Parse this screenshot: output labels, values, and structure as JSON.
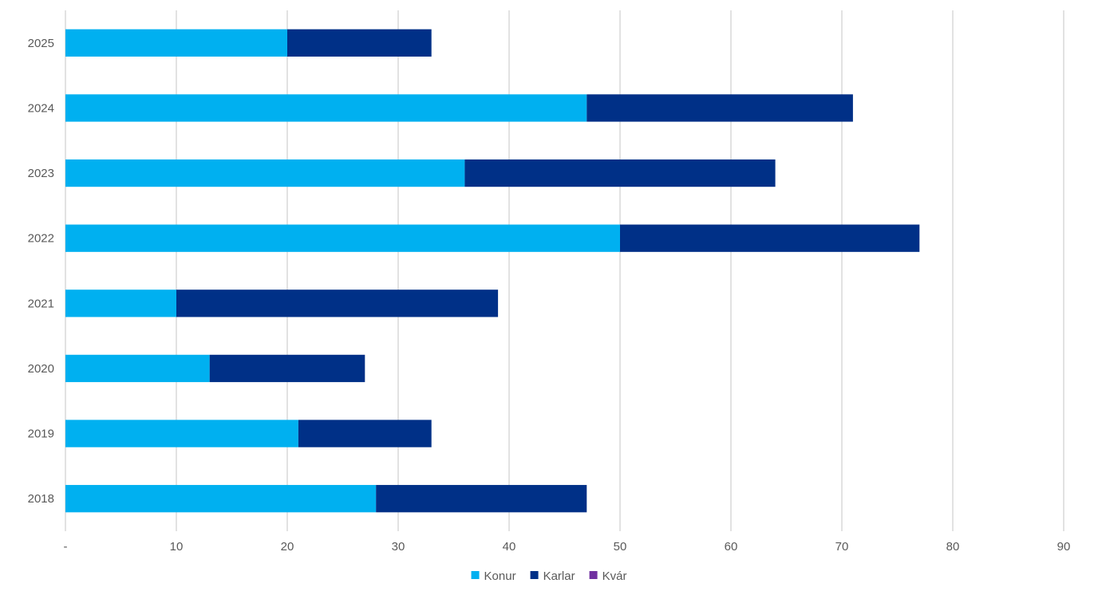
{
  "chart_data": {
    "type": "bar",
    "orientation": "horizontal",
    "stacked": true,
    "categories": [
      "2025",
      "2024",
      "2023",
      "2022",
      "2021",
      "2020",
      "2019",
      "2018"
    ],
    "series": [
      {
        "name": "Konur",
        "color": "#00B0F0",
        "values": [
          20,
          47,
          36,
          50,
          10,
          13,
          21,
          28
        ]
      },
      {
        "name": "Karlar",
        "color": "#003087",
        "values": [
          13,
          24,
          28,
          27,
          29,
          14,
          12,
          19
        ]
      },
      {
        "name": "Kvár",
        "color": "#7030A0",
        "values": [
          0,
          0,
          0,
          0,
          0,
          0,
          0,
          0
        ]
      }
    ],
    "xlim": [
      0,
      90
    ],
    "x_ticks": [
      0,
      10,
      20,
      30,
      40,
      50,
      60,
      70,
      80,
      90
    ],
    "x_tick_labels": [
      "-",
      "10",
      "20",
      "30",
      "40",
      "50",
      "60",
      "70",
      "80",
      "90"
    ],
    "grid": "vertical",
    "legend_position": "bottom"
  }
}
